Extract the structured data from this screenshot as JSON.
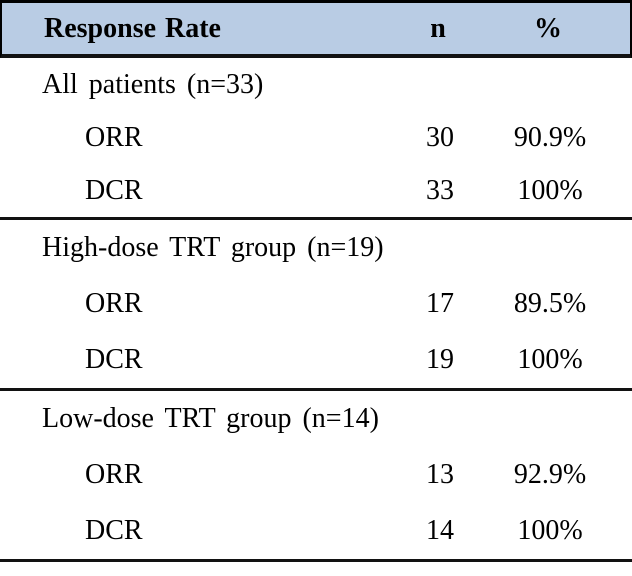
{
  "table": {
    "colors": {
      "header_bg": "#b9cce4",
      "border": "#121212",
      "text": "#000000"
    },
    "header": {
      "col1": "Response Rate",
      "col2": "n",
      "col3": "%"
    },
    "sections": [
      {
        "title": "All patients (n=33)",
        "rows": [
          {
            "label": "ORR",
            "n": "30",
            "pct": "90.9%"
          },
          {
            "label": "DCR",
            "n": "33",
            "pct": "100%"
          }
        ]
      },
      {
        "title": "High-dose TRT group (n=19)",
        "rows": [
          {
            "label": "ORR",
            "n": "17",
            "pct": "89.5%"
          },
          {
            "label": "DCR",
            "n": "19",
            "pct": "100%"
          }
        ]
      },
      {
        "title": "Low-dose TRT group (n=14)",
        "rows": [
          {
            "label": "ORR",
            "n": "13",
            "pct": "92.9%"
          },
          {
            "label": "DCR",
            "n": "14",
            "pct": "100%"
          }
        ]
      }
    ]
  }
}
